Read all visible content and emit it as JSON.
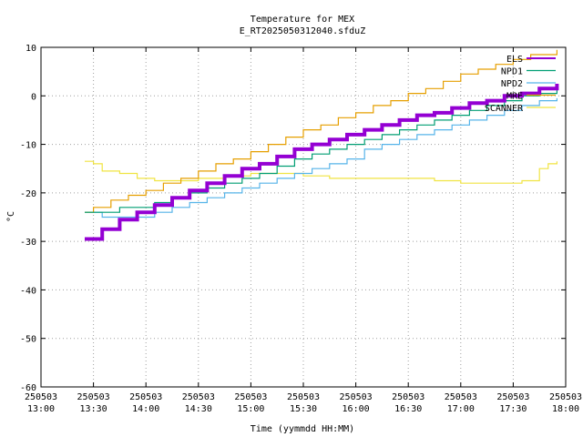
{
  "chart_data": {
    "type": "line",
    "title": "Temperature for MEX",
    "subtitle": "E_RT2025050312040.sfduZ",
    "xlabel": "Time (yymmdd HH:MM)",
    "ylabel": "°C",
    "xlim": [
      "13:00",
      "18:00"
    ],
    "ylim": [
      -60,
      10
    ],
    "grid": true,
    "legend_position": "top-right",
    "x_ticks": [
      {
        "time": "13:00",
        "label": [
          "250503",
          "13:00"
        ]
      },
      {
        "time": "13:30",
        "label": [
          "250503",
          "13:30"
        ]
      },
      {
        "time": "14:00",
        "label": [
          "250503",
          "14:00"
        ]
      },
      {
        "time": "14:30",
        "label": [
          "250503",
          "14:30"
        ]
      },
      {
        "time": "15:00",
        "label": [
          "250503",
          "15:00"
        ]
      },
      {
        "time": "15:30",
        "label": [
          "250503",
          "15:30"
        ]
      },
      {
        "time": "16:00",
        "label": [
          "250503",
          "16:00"
        ]
      },
      {
        "time": "16:30",
        "label": [
          "250503",
          "16:30"
        ]
      },
      {
        "time": "17:00",
        "label": [
          "250503",
          "17:00"
        ]
      },
      {
        "time": "17:30",
        "label": [
          "250503",
          "17:30"
        ]
      },
      {
        "time": "18:00",
        "label": [
          "250503",
          "18:00"
        ]
      }
    ],
    "y_ticks": [
      10,
      0,
      -10,
      -20,
      -30,
      -40,
      -50,
      -60
    ],
    "series": [
      {
        "name": "ELS",
        "color": "#9400d3",
        "width": 4,
        "points": [
          [
            "13:25",
            -29.5
          ],
          [
            "13:35",
            -27.5
          ],
          [
            "13:45",
            -25.5
          ],
          [
            "13:55",
            -24
          ],
          [
            "14:05",
            -22.5
          ],
          [
            "14:15",
            -21
          ],
          [
            "14:25",
            -19.5
          ],
          [
            "14:35",
            -18
          ],
          [
            "14:45",
            -16.5
          ],
          [
            "14:55",
            -15
          ],
          [
            "15:05",
            -14
          ],
          [
            "15:15",
            -12.5
          ],
          [
            "15:25",
            -11
          ],
          [
            "15:35",
            -10
          ],
          [
            "15:45",
            -9
          ],
          [
            "15:55",
            -8
          ],
          [
            "16:05",
            -7
          ],
          [
            "16:15",
            -6
          ],
          [
            "16:25",
            -5
          ],
          [
            "16:35",
            -4
          ],
          [
            "16:45",
            -3.5
          ],
          [
            "16:55",
            -2.5
          ],
          [
            "17:05",
            -1.5
          ],
          [
            "17:15",
            -1
          ],
          [
            "17:25",
            0
          ],
          [
            "17:35",
            0.5
          ],
          [
            "17:45",
            1.5
          ],
          [
            "17:55",
            2.5
          ]
        ]
      },
      {
        "name": "NPD1",
        "color": "#009e73",
        "width": 1.2,
        "points": [
          [
            "13:25",
            -24
          ],
          [
            "13:35",
            -24
          ],
          [
            "13:45",
            -23
          ],
          [
            "13:55",
            -23
          ],
          [
            "14:05",
            -22
          ],
          [
            "14:15",
            -21
          ],
          [
            "14:25",
            -20
          ],
          [
            "14:35",
            -19
          ],
          [
            "14:45",
            -18
          ],
          [
            "14:55",
            -17
          ],
          [
            "15:05",
            -16
          ],
          [
            "15:15",
            -14.5
          ],
          [
            "15:25",
            -13
          ],
          [
            "15:35",
            -12
          ],
          [
            "15:45",
            -11
          ],
          [
            "15:55",
            -10
          ],
          [
            "16:05",
            -9
          ],
          [
            "16:15",
            -8
          ],
          [
            "16:25",
            -7
          ],
          [
            "16:35",
            -6
          ],
          [
            "16:45",
            -5
          ],
          [
            "16:55",
            -4
          ],
          [
            "17:05",
            -3
          ],
          [
            "17:15",
            -2
          ],
          [
            "17:25",
            -1
          ],
          [
            "17:35",
            0
          ],
          [
            "17:45",
            0.5
          ],
          [
            "17:55",
            1.5
          ]
        ]
      },
      {
        "name": "NPD2",
        "color": "#56b4e9",
        "width": 1.2,
        "points": [
          [
            "13:25",
            -24
          ],
          [
            "13:35",
            -25
          ],
          [
            "13:45",
            -25
          ],
          [
            "13:55",
            -25
          ],
          [
            "14:05",
            -24
          ],
          [
            "14:15",
            -23
          ],
          [
            "14:25",
            -22
          ],
          [
            "14:35",
            -21
          ],
          [
            "14:45",
            -20
          ],
          [
            "14:55",
            -19
          ],
          [
            "15:05",
            -18
          ],
          [
            "15:15",
            -17
          ],
          [
            "15:25",
            -16
          ],
          [
            "15:35",
            -15
          ],
          [
            "15:45",
            -14
          ],
          [
            "15:55",
            -13
          ],
          [
            "16:05",
            -11
          ],
          [
            "16:15",
            -10
          ],
          [
            "16:25",
            -9
          ],
          [
            "16:35",
            -8
          ],
          [
            "16:45",
            -7
          ],
          [
            "16:55",
            -6
          ],
          [
            "17:05",
            -5
          ],
          [
            "17:15",
            -4
          ],
          [
            "17:25",
            -3
          ],
          [
            "17:35",
            -2
          ],
          [
            "17:45",
            -1
          ],
          [
            "17:55",
            -0.5
          ]
        ]
      },
      {
        "name": "MRE",
        "color": "#e69f00",
        "width": 1.2,
        "points": [
          [
            "13:25",
            -24
          ],
          [
            "13:30",
            -23
          ],
          [
            "13:40",
            -21.5
          ],
          [
            "13:50",
            -20.5
          ],
          [
            "14:00",
            -19.5
          ],
          [
            "14:10",
            -18
          ],
          [
            "14:20",
            -17
          ],
          [
            "14:30",
            -15.5
          ],
          [
            "14:40",
            -14
          ],
          [
            "14:50",
            -13
          ],
          [
            "15:00",
            -11.5
          ],
          [
            "15:10",
            -10
          ],
          [
            "15:20",
            -8.5
          ],
          [
            "15:30",
            -7
          ],
          [
            "15:40",
            -6
          ],
          [
            "15:50",
            -4.5
          ],
          [
            "16:00",
            -3.5
          ],
          [
            "16:10",
            -2
          ],
          [
            "16:20",
            -1
          ],
          [
            "16:30",
            0.5
          ],
          [
            "16:40",
            1.5
          ],
          [
            "16:50",
            3
          ],
          [
            "17:00",
            4.5
          ],
          [
            "17:10",
            5.5
          ],
          [
            "17:20",
            6.5
          ],
          [
            "17:30",
            7.5
          ],
          [
            "17:40",
            8.5
          ],
          [
            "17:55",
            9.5
          ]
        ]
      },
      {
        "name": "SCANNER",
        "color": "#f0e442",
        "width": 1.2,
        "points": [
          [
            "13:25",
            -13.5
          ],
          [
            "13:30",
            -14
          ],
          [
            "13:35",
            -15.5
          ],
          [
            "13:45",
            -16
          ],
          [
            "13:55",
            -17
          ],
          [
            "14:05",
            -17.5
          ],
          [
            "14:15",
            -17.5
          ],
          [
            "14:30",
            -17
          ],
          [
            "14:45",
            -16.5
          ],
          [
            "15:00",
            -16
          ],
          [
            "15:15",
            -16
          ],
          [
            "15:30",
            -16.5
          ],
          [
            "15:45",
            -17
          ],
          [
            "16:00",
            -17
          ],
          [
            "16:15",
            -17
          ],
          [
            "16:30",
            -17
          ],
          [
            "16:45",
            -17.5
          ],
          [
            "17:00",
            -18
          ],
          [
            "17:15",
            -18
          ],
          [
            "17:30",
            -18
          ],
          [
            "17:35",
            -17.5
          ],
          [
            "17:45",
            -15
          ],
          [
            "17:50",
            -14
          ],
          [
            "17:55",
            -13.5
          ]
        ]
      }
    ]
  }
}
